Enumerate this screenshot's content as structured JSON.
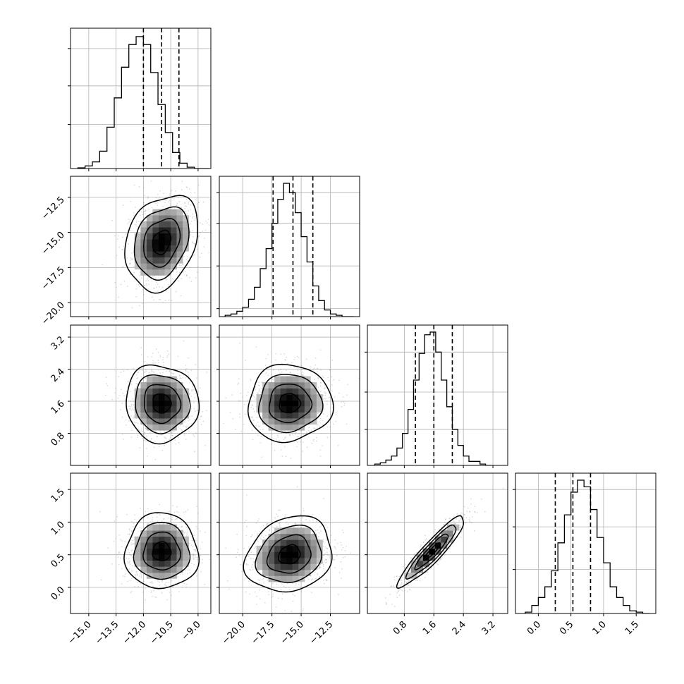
{
  "chart_data": {
    "type": "corner",
    "variables": 4,
    "grid": true,
    "colors": {
      "line": "#000000",
      "grid": "#b0b0b0",
      "scatter": "#9a9a9a",
      "quantile_line": "#000000"
    },
    "histograms": [
      {
        "variable": 0,
        "xlim": [
          -16.0,
          -8.3
        ],
        "ylim": [
          0,
          1.0
        ],
        "quantiles": [
          -12.0,
          -11.0,
          -10.05
        ],
        "y_grid": [
          0.33,
          0.62,
          0.9
        ],
        "x_ticks": [
          "-15.0",
          "-13.5",
          "-12.0",
          "-10.5",
          "-9.0"
        ],
        "bins": [
          -15.6,
          -15.2,
          -14.8,
          -14.4,
          -14.0,
          -13.6,
          -13.2,
          -12.8,
          -12.4,
          -12.0,
          -11.6,
          -11.2,
          -10.8,
          -10.4,
          -10.0,
          -9.6,
          -9.2,
          -8.8,
          -8.4
        ],
        "counts": [
          0.005,
          0.02,
          0.05,
          0.13,
          0.31,
          0.53,
          0.76,
          0.93,
          0.99,
          0.93,
          0.72,
          0.48,
          0.27,
          0.12,
          0.04,
          0.01,
          0.0,
          0.0
        ]
      },
      {
        "variable": 1,
        "xlim": [
          -22.0,
          -10.0
        ],
        "ylim": [
          0,
          1.0
        ],
        "quantiles": [
          -17.4,
          -15.7,
          -14.0
        ],
        "y_grid": [
          0.06,
          0.38,
          0.7,
          0.93
        ],
        "x_ticks": [
          "-20.0",
          "-17.5",
          "-15.0",
          "-12.5"
        ],
        "bins": [
          -21.5,
          -21.0,
          -20.5,
          -20.0,
          -19.5,
          -19.0,
          -18.5,
          -18.0,
          -17.5,
          -17.0,
          -16.5,
          -16.0,
          -15.5,
          -15.0,
          -14.5,
          -14.0,
          -13.5,
          -13.0,
          -12.5,
          -12.0,
          -11.5,
          -11.0,
          -10.5
        ],
        "counts": [
          0.01,
          0.02,
          0.04,
          0.07,
          0.13,
          0.22,
          0.36,
          0.51,
          0.7,
          0.88,
          1.0,
          0.93,
          0.78,
          0.6,
          0.41,
          0.23,
          0.12,
          0.05,
          0.02,
          0.01,
          0.0,
          0.0
        ]
      },
      {
        "variable": 2,
        "xlim": [
          -0.2,
          3.6
        ],
        "ylim": [
          0,
          1.0
        ],
        "quantiles": [
          1.1,
          1.6,
          2.1
        ],
        "y_grid": [
          0.27,
          0.55,
          0.85
        ],
        "x_ticks": [
          "0.8",
          "1.6",
          "2.4",
          "3.2"
        ],
        "bins": [
          0.0,
          0.15,
          0.3,
          0.45,
          0.6,
          0.75,
          0.9,
          1.05,
          1.2,
          1.35,
          1.5,
          1.65,
          1.8,
          1.95,
          2.1,
          2.25,
          2.4,
          2.55,
          2.7,
          2.85,
          3.0,
          3.15
        ],
        "counts": [
          0.01,
          0.02,
          0.04,
          0.07,
          0.13,
          0.24,
          0.42,
          0.64,
          0.84,
          0.98,
          1.0,
          0.85,
          0.64,
          0.44,
          0.27,
          0.15,
          0.07,
          0.03,
          0.03,
          0.01,
          0.0
        ]
      },
      {
        "variable": 3,
        "xlim": [
          -0.35,
          1.8
        ],
        "ylim": [
          0,
          1.0
        ],
        "quantiles": [
          0.26,
          0.53,
          0.8
        ],
        "y_grid": [
          0.33,
          0.65,
          0.93
        ],
        "x_ticks": [
          "0.0",
          "0.5",
          "1.0",
          "1.5"
        ],
        "bins": [
          -0.2,
          -0.1,
          0.0,
          0.1,
          0.2,
          0.3,
          0.4,
          0.5,
          0.6,
          0.7,
          0.8,
          0.9,
          1.0,
          1.1,
          1.2,
          1.3,
          1.4,
          1.5,
          1.6,
          1.7
        ],
        "counts": [
          0.01,
          0.06,
          0.12,
          0.2,
          0.32,
          0.53,
          0.74,
          0.91,
          1.0,
          0.95,
          0.78,
          0.57,
          0.38,
          0.2,
          0.12,
          0.06,
          0.02,
          0.01,
          0.0
        ]
      }
    ],
    "axes": {
      "var0": {
        "lim": [
          -16.0,
          -8.3
        ],
        "ticks": [
          "-15.0",
          "-13.5",
          "-12.0",
          "-10.5",
          "-9.0"
        ]
      },
      "var1": {
        "lim": [
          -21.0,
          -11.0
        ],
        "ticks": [
          "-20.0",
          "-17.5",
          "-15.0",
          "-12.5"
        ]
      },
      "var1_x": {
        "lim": [
          -22.0,
          -10.0
        ],
        "ticks": [
          "-20.0",
          "-17.5",
          "-15.0",
          "-12.5"
        ]
      },
      "var2": {
        "lim": [
          0.0,
          3.5
        ],
        "ticks": [
          "0.8",
          "1.6",
          "2.4",
          "3.2"
        ]
      },
      "var2_x": {
        "lim": [
          -0.2,
          3.6
        ],
        "ticks": [
          "0.8",
          "1.6",
          "2.4",
          "3.2"
        ]
      },
      "var3": {
        "lim": [
          -0.4,
          1.75
        ],
        "ticks": [
          "0.0",
          "0.5",
          "1.0",
          "1.5"
        ]
      }
    },
    "panels_2d": [
      {
        "row": 1,
        "col": 0,
        "x": "var0",
        "y": "var1",
        "center": [
          -11.0,
          -15.7
        ],
        "sd": [
          1.0,
          1.7
        ],
        "rho": 0.25
      },
      {
        "row": 2,
        "col": 0,
        "x": "var0",
        "y": "var2",
        "center": [
          -11.0,
          1.55
        ],
        "sd": [
          1.0,
          0.48
        ],
        "rho": -0.05
      },
      {
        "row": 2,
        "col": 1,
        "x": "var1_x",
        "y": "var2",
        "center": [
          -16.0,
          1.55
        ],
        "sd": [
          1.8,
          0.48
        ],
        "rho": 0.03
      },
      {
        "row": 3,
        "col": 0,
        "x": "var0",
        "y": "var3",
        "center": [
          -11.0,
          0.55
        ],
        "sd": [
          1.0,
          0.29
        ],
        "rho": 0.0
      },
      {
        "row": 3,
        "col": 1,
        "x": "var1_x",
        "y": "var3",
        "center": [
          -16.0,
          0.5
        ],
        "sd": [
          1.85,
          0.29
        ],
        "rho": 0.18
      },
      {
        "row": 3,
        "col": 2,
        "x": "var2_x",
        "y": "var3",
        "center": [
          1.55,
          0.55
        ],
        "sd": [
          0.45,
          0.27
        ],
        "rho": 0.92
      }
    ],
    "contour_levels_sigma": [
      0.5,
      1.0,
      1.5,
      2.0
    ]
  }
}
